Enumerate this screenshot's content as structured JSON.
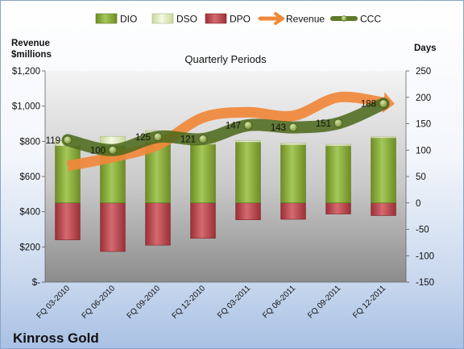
{
  "chart_data": {
    "type": "bar",
    "title": "Quarterly Periods",
    "company": "Kinross Gold",
    "left_axis": {
      "label_line1": "Revenue",
      "label_line2": "$millions",
      "range": [
        0,
        1200
      ],
      "ticks": [
        {
          "value": 0,
          "label": "$-"
        },
        {
          "value": 200,
          "label": "$200"
        },
        {
          "value": 400,
          "label": "$400"
        },
        {
          "value": 600,
          "label": "$600"
        },
        {
          "value": 800,
          "label": "$800"
        },
        {
          "value": 1000,
          "label": "$1,000"
        },
        {
          "value": 1200,
          "label": "$1,200"
        }
      ]
    },
    "right_axis": {
      "label": "Days",
      "range": [
        -150,
        250
      ],
      "ticks": [
        {
          "value": -150,
          "label": "-150"
        },
        {
          "value": -100,
          "label": "-100"
        },
        {
          "value": -50,
          "label": "-50"
        },
        {
          "value": 0,
          "label": "0"
        },
        {
          "value": 50,
          "label": "50"
        },
        {
          "value": 100,
          "label": "100"
        },
        {
          "value": 150,
          "label": "150"
        },
        {
          "value": 200,
          "label": "200"
        },
        {
          "value": 250,
          "label": "250"
        }
      ]
    },
    "categories": [
      "FQ 03-2010",
      "FQ 06-2010",
      "FQ 09-2010",
      "FQ 12-2010",
      "FQ 03-2011",
      "FQ 06-2011",
      "FQ 09-2011",
      "FQ 12-2011"
    ],
    "series": [
      {
        "name": "DIO",
        "axis": "days",
        "color": "#7a9a2e",
        "values": [
          108,
          108,
          116,
          111,
          115,
          110,
          108,
          123
        ]
      },
      {
        "name": "DSO",
        "axis": "days",
        "color": "#e4efc2",
        "values": [
          10,
          18,
          21,
          10,
          3,
          3,
          3,
          2
        ]
      },
      {
        "name": "DPO",
        "axis": "days",
        "color": "#b8474e",
        "values": [
          -70,
          -92,
          -80,
          -67,
          -32,
          -31,
          -21,
          -24
        ]
      },
      {
        "name": "Revenue",
        "axis": "revenue",
        "color": "#f0883a",
        "values": [
          660,
          710,
          780,
          935,
          965,
          945,
          1050,
          1020
        ]
      },
      {
        "name": "CCC",
        "axis": "days",
        "color": "#5e7a2a",
        "values": [
          119,
          100,
          125,
          121,
          147,
          143,
          151,
          188
        ],
        "labels": [
          "119",
          "100",
          "125",
          "121",
          "147",
          "143",
          "151",
          "188"
        ]
      }
    ],
    "legend_position": "top",
    "grid": false
  }
}
